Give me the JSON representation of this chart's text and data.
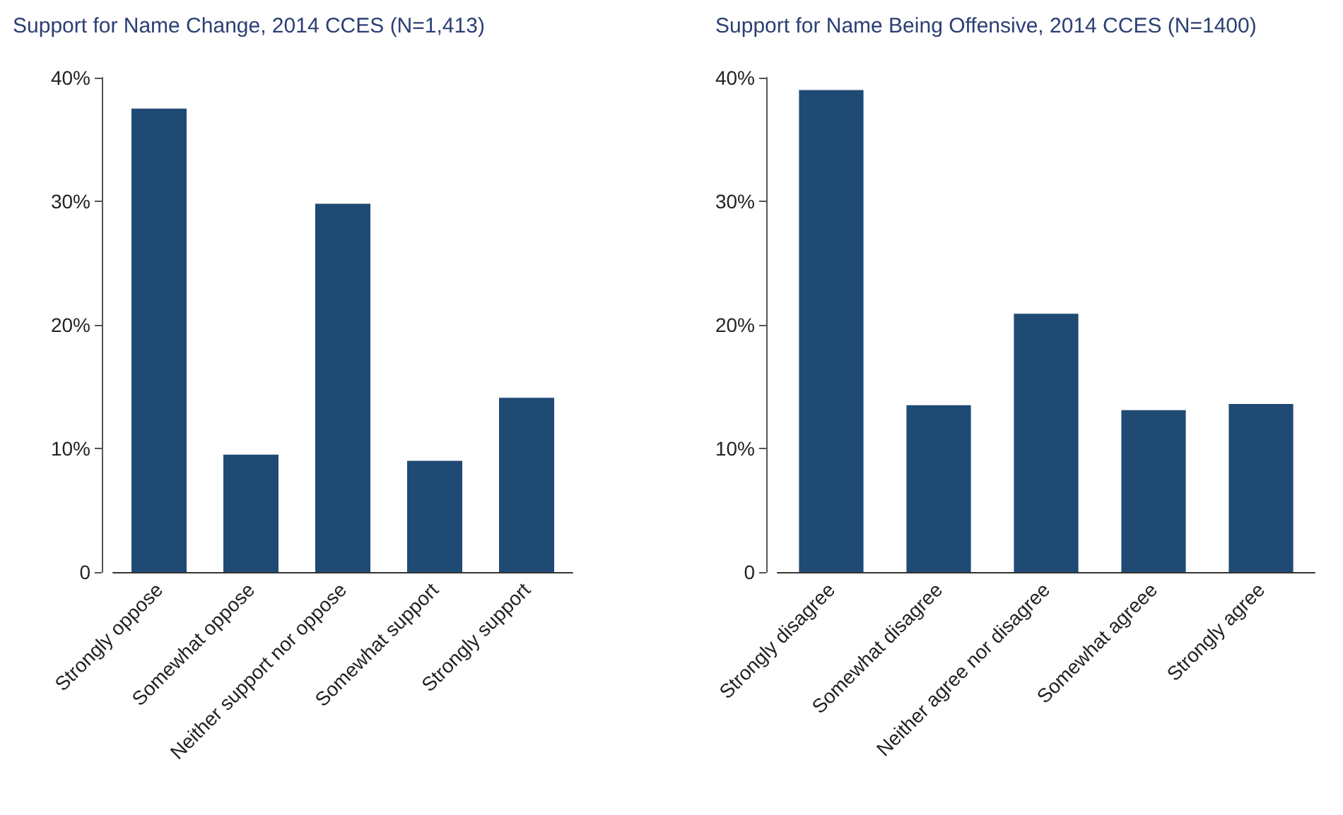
{
  "chart_data": [
    {
      "type": "bar",
      "title": "Support for Name Change, 2014 CCES (N=1,413)",
      "categories": [
        "Strongly oppose",
        "Somewhat oppose",
        "Neither support nor oppose",
        "Somewhat support",
        "Strongly support"
      ],
      "values": [
        37.5,
        9.5,
        29.8,
        9.0,
        14.1
      ],
      "color": "#1f4a74",
      "ylim": [
        0,
        40
      ],
      "yticks": [
        0,
        {
          "value": 10,
          "label": "10%"
        },
        {
          "value": 20,
          "label": "20%"
        },
        {
          "value": 30,
          "label": "30%"
        },
        {
          "value": 40,
          "label": "40%"
        }
      ]
    },
    {
      "type": "bar",
      "title": "Support for Name Being Offensive, 2014 CCES (N=1400)",
      "categories": [
        "Strongly disagree",
        "Somewhat disagree",
        "Neither agree nor disagree",
        "Somewhat agreee",
        "Strongly agree"
      ],
      "values": [
        39.0,
        13.5,
        20.9,
        13.1,
        13.6
      ],
      "color": "#1f4a74",
      "ylim": [
        0,
        40
      ],
      "yticks": [
        0,
        {
          "value": 10,
          "label": "10%"
        },
        {
          "value": 20,
          "label": "20%"
        },
        {
          "value": 30,
          "label": "30%"
        },
        {
          "value": 40,
          "label": "40%"
        }
      ]
    }
  ]
}
